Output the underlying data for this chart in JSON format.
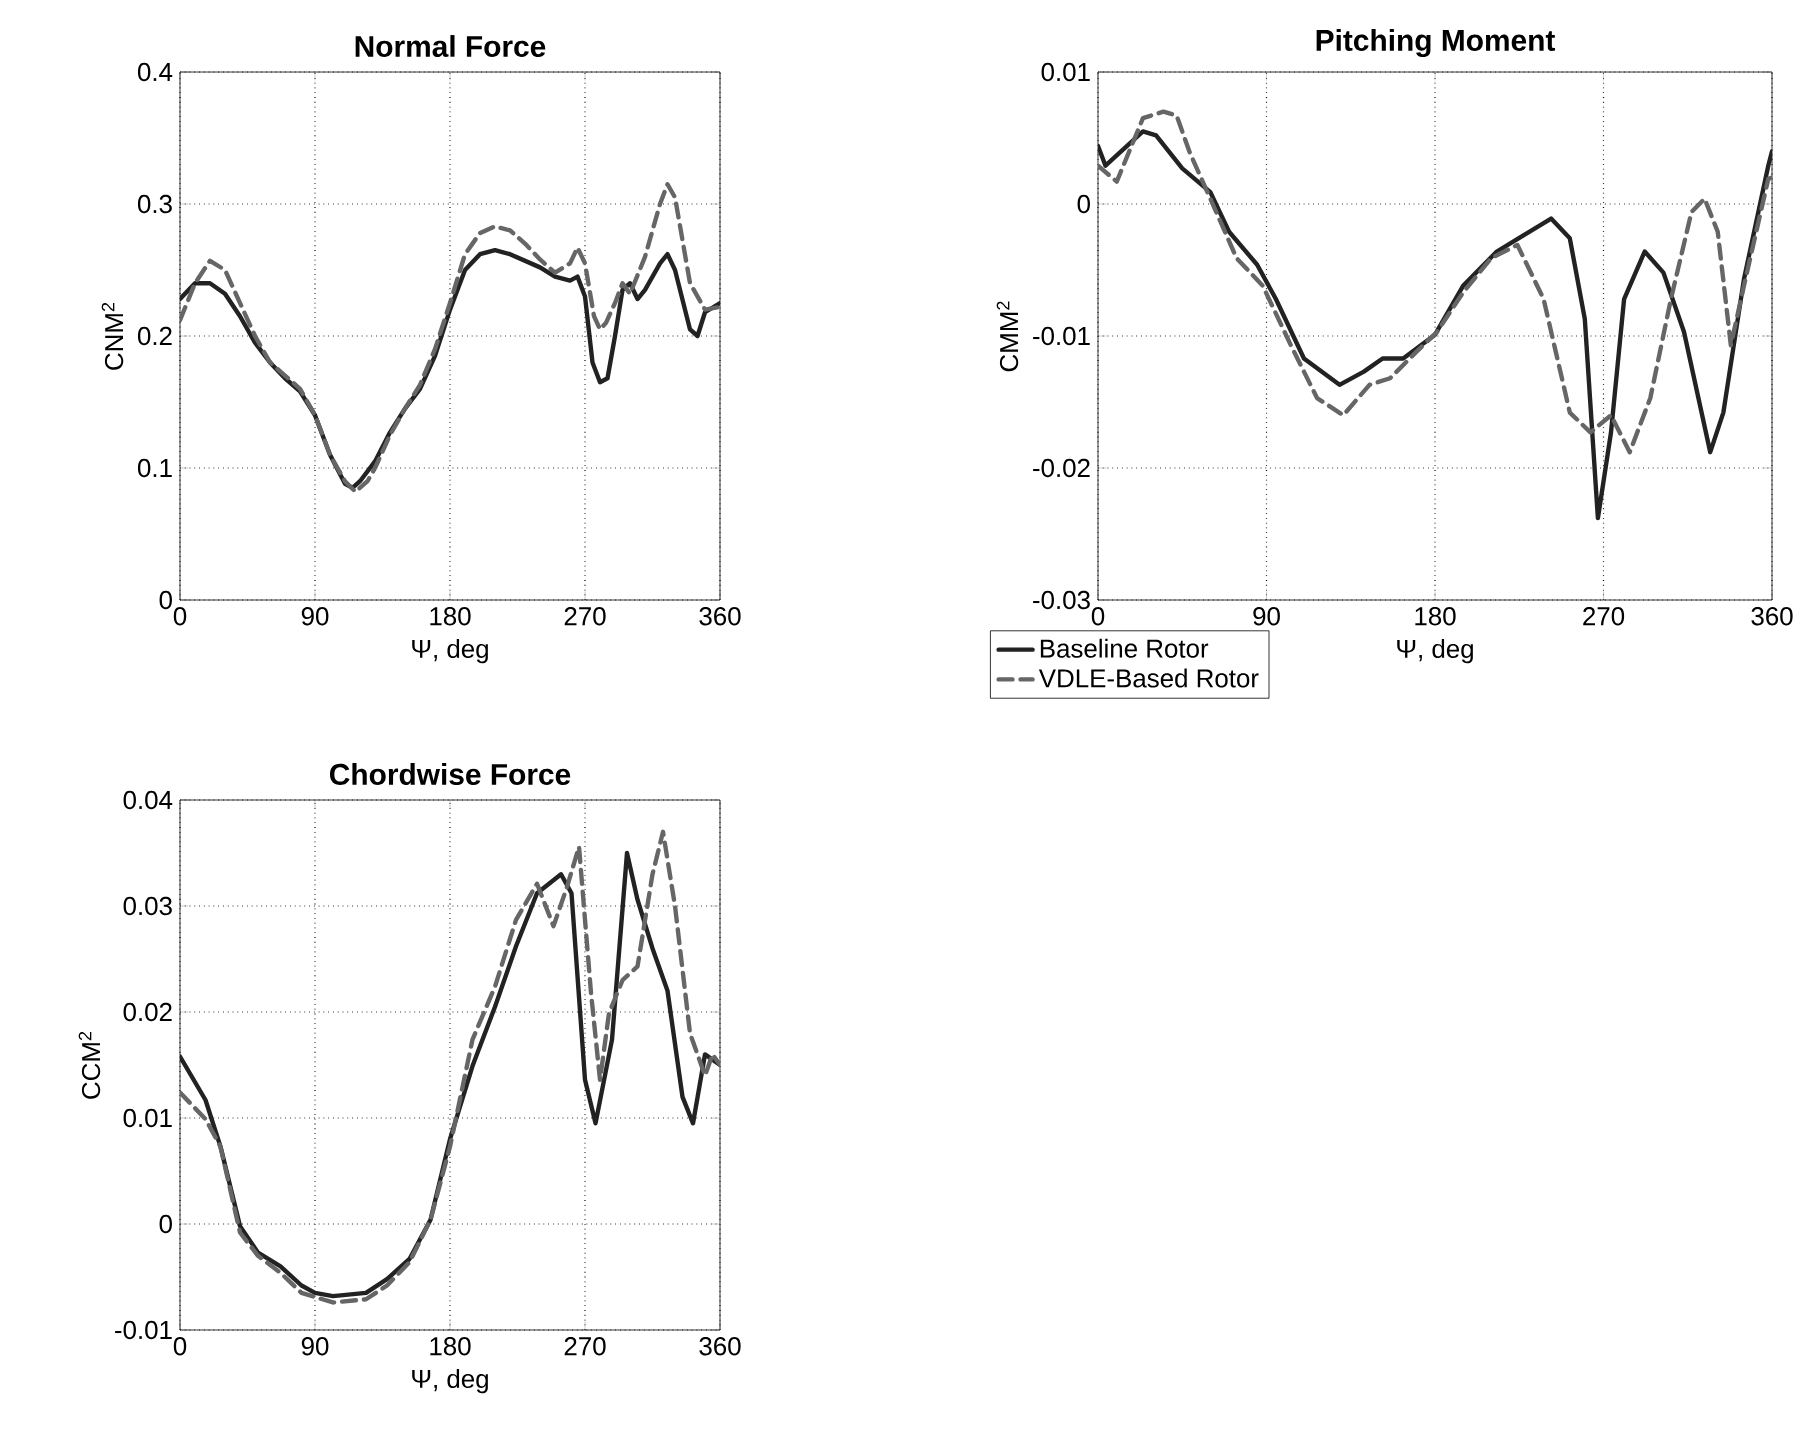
{
  "chart_data": [
    {
      "type": "line",
      "title": "Normal Force",
      "xlabel": "Ψ, deg",
      "ylabel": "CNM$^{2}$",
      "xlim": [
        0,
        360
      ],
      "xticks": [
        0,
        90,
        180,
        270,
        360
      ],
      "ylim": [
        0,
        0.4
      ],
      "yticks": [
        0,
        0.1,
        0.2,
        0.3,
        0.4
      ],
      "grid": true,
      "series": [
        {
          "color": "#222222",
          "line_style": "solid",
          "x": [
            0,
            10,
            20,
            30,
            40,
            50,
            60,
            70,
            80,
            90,
            100,
            110,
            115,
            120,
            130,
            140,
            150,
            160,
            170,
            180,
            190,
            200,
            210,
            220,
            230,
            240,
            250,
            260,
            265,
            270,
            275,
            280,
            285,
            290,
            295,
            300,
            305,
            310,
            320,
            325,
            330,
            340,
            345,
            350,
            360
          ],
          "values": [
            0.228,
            0.24,
            0.24,
            0.232,
            0.215,
            0.195,
            0.18,
            0.168,
            0.158,
            0.14,
            0.11,
            0.088,
            0.085,
            0.09,
            0.105,
            0.127,
            0.145,
            0.16,
            0.185,
            0.22,
            0.25,
            0.262,
            0.265,
            0.262,
            0.257,
            0.252,
            0.245,
            0.242,
            0.245,
            0.23,
            0.18,
            0.165,
            0.168,
            0.2,
            0.235,
            0.24,
            0.228,
            0.235,
            0.255,
            0.262,
            0.25,
            0.205,
            0.2,
            0.218,
            0.225
          ]
        },
        {
          "color": "#666666",
          "line_style": "dashed",
          "x": [
            0,
            10,
            20,
            30,
            40,
            50,
            60,
            70,
            80,
            90,
            100,
            110,
            117,
            125,
            130,
            140,
            150,
            160,
            170,
            180,
            190,
            200,
            210,
            220,
            230,
            240,
            250,
            260,
            265,
            270,
            276,
            280,
            284,
            290,
            295,
            300,
            310,
            320,
            325,
            330,
            340,
            350,
            360
          ],
          "values": [
            0.212,
            0.24,
            0.257,
            0.25,
            0.225,
            0.2,
            0.18,
            0.17,
            0.16,
            0.14,
            0.11,
            0.09,
            0.082,
            0.09,
            0.1,
            0.125,
            0.145,
            0.163,
            0.19,
            0.225,
            0.262,
            0.278,
            0.283,
            0.28,
            0.27,
            0.258,
            0.248,
            0.255,
            0.267,
            0.255,
            0.215,
            0.205,
            0.21,
            0.225,
            0.24,
            0.232,
            0.26,
            0.3,
            0.315,
            0.305,
            0.24,
            0.22,
            0.222
          ]
        }
      ]
    },
    {
      "type": "line",
      "title": "Pitching Moment",
      "xlabel": "Ψ, deg",
      "ylabel": "CMM$^{2}$",
      "xlim": [
        0,
        360
      ],
      "xticks": [
        0,
        90,
        180,
        270,
        360
      ],
      "ylim": [
        -0.03,
        0.01
      ],
      "yticks": [
        -0.03,
        -0.02,
        -0.01,
        0,
        0.01
      ],
      "grid": true,
      "series": [
        {
          "color": "#222222",
          "line_style": "solid",
          "x": [
            0,
            4,
            24,
            31,
            45,
            60,
            70,
            85,
            95,
            110,
            129,
            142,
            152,
            163,
            180,
            195,
            213,
            227,
            242,
            252,
            260,
            267,
            274,
            281,
            292,
            302,
            313,
            327,
            334,
            345,
            358,
            360
          ],
          "values": [
            0.0044,
            0.0029,
            0.0055,
            0.0052,
            0.0027,
            0.0009,
            -0.0021,
            -0.0046,
            -0.0072,
            -0.0117,
            -0.0137,
            -0.0127,
            -0.0117,
            -0.0117,
            -0.0099,
            -0.0062,
            -0.0036,
            -0.0024,
            -0.0011,
            -0.0026,
            -0.0087,
            -0.0238,
            -0.0173,
            -0.0072,
            -0.0036,
            -0.0052,
            -0.0097,
            -0.0188,
            -0.0158,
            -0.0057,
            0.0029,
            0.004
          ]
        },
        {
          "color": "#666666",
          "line_style": "dashed",
          "x": [
            0,
            10,
            24,
            35,
            42,
            49,
            60,
            74,
            88,
            103,
            117,
            131,
            145,
            156,
            170,
            181,
            195,
            210,
            224,
            238,
            252,
            263,
            274,
            284,
            295,
            306,
            317,
            324,
            331,
            338,
            345,
            358,
            360
          ],
          "values": [
            0.0029,
            0.0017,
            0.0065,
            0.007,
            0.0067,
            0.0039,
            0.0004,
            -0.0041,
            -0.0062,
            -0.0107,
            -0.0147,
            -0.016,
            -0.0137,
            -0.0132,
            -0.0112,
            -0.0097,
            -0.0067,
            -0.0041,
            -0.0031,
            -0.0072,
            -0.0158,
            -0.0173,
            -0.016,
            -0.0188,
            -0.0147,
            -0.0072,
            -0.0006,
            0.0004,
            -0.0021,
            -0.0107,
            -0.0062,
            0.0019,
            0.002
          ]
        }
      ]
    },
    {
      "type": "line",
      "title": "Chordwise Force",
      "xlabel": "Ψ, deg",
      "ylabel": "CCM$^{2}$",
      "xlim": [
        0,
        360
      ],
      "xticks": [
        0,
        90,
        180,
        270,
        360
      ],
      "ylim": [
        -0.01,
        0.04
      ],
      "yticks": [
        -0.01,
        0,
        0.01,
        0.02,
        0.03,
        0.04
      ],
      "grid": true,
      "legend": "right",
      "series": [
        {
          "name": "Baseline Rotor",
          "color": "#222222",
          "line_style": "solid",
          "x": [
            0,
            17,
            27,
            40,
            52,
            67,
            81,
            90,
            102,
            124,
            138,
            153,
            167,
            180,
            195,
            210,
            224,
            238,
            254,
            261,
            270,
            277,
            288,
            298,
            305,
            315,
            325,
            335,
            342,
            350,
            360
          ],
          "values": [
            0.0158,
            0.0117,
            0.0073,
            -0.0002,
            -0.0027,
            -0.004,
            -0.0058,
            -0.0065,
            -0.0068,
            -0.0065,
            -0.0052,
            -0.0033,
            0.0004,
            0.008,
            0.0149,
            0.0205,
            0.0262,
            0.0312,
            0.033,
            0.0312,
            0.0136,
            0.0095,
            0.0174,
            0.035,
            0.0306,
            0.026,
            0.022,
            0.012,
            0.0095,
            0.016,
            0.015
          ]
        },
        {
          "name": "VDLE-Based Rotor",
          "color": "#666666",
          "line_style": "dashed",
          "x": [
            0,
            17,
            27,
            40,
            52,
            67,
            81,
            102,
            124,
            138,
            153,
            167,
            180,
            195,
            210,
            224,
            238,
            249,
            258,
            266,
            274,
            280,
            286,
            295,
            305,
            315,
            322,
            330,
            340,
            350,
            355,
            360
          ],
          "values": [
            0.0124,
            0.0099,
            0.0073,
            -0.0008,
            -0.003,
            -0.0046,
            -0.0065,
            -0.0074,
            -0.0071,
            -0.0058,
            -0.0036,
            0.0004,
            0.0073,
            0.0174,
            0.0224,
            0.0287,
            0.0321,
            0.0281,
            0.0318,
            0.0356,
            0.0218,
            0.0136,
            0.0199,
            0.023,
            0.0243,
            0.033,
            0.037,
            0.03,
            0.018,
            0.014,
            0.016,
            0.015
          ]
        }
      ]
    }
  ]
}
